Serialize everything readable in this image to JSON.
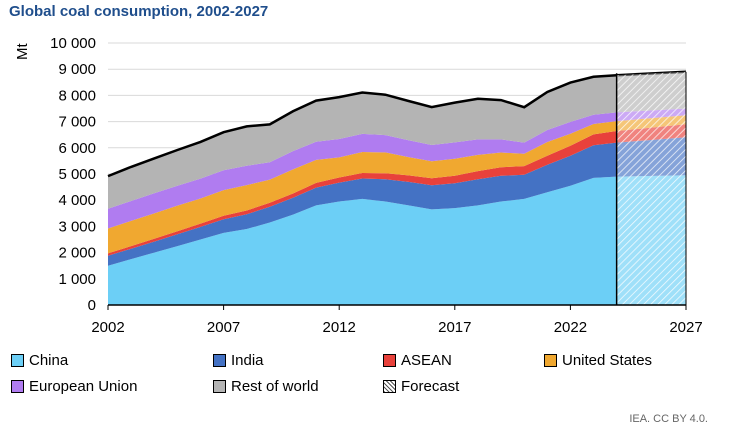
{
  "chart_data": {
    "type": "area",
    "stacked": true,
    "title": "Global coal consumption, 2002-2027",
    "ylabel": "Mt",
    "xlabel": "",
    "xlim": [
      2002,
      2027
    ],
    "ylim": [
      0,
      10000
    ],
    "xticks": [
      2002,
      2007,
      2012,
      2017,
      2022,
      2027
    ],
    "yticks": [
      0,
      1000,
      2000,
      3000,
      4000,
      5000,
      6000,
      7000,
      8000,
      9000,
      10000
    ],
    "ytick_labels": [
      "0",
      "1 000",
      "2 000",
      "3 000",
      "4 000",
      "5 000",
      "6 000",
      "7 000",
      "8 000",
      "9 000",
      "10 000"
    ],
    "forecast_start": 2024,
    "grid": "horizontal",
    "legend_position": "bottom",
    "x": [
      2002,
      2003,
      2004,
      2005,
      2006,
      2007,
      2008,
      2009,
      2010,
      2011,
      2012,
      2013,
      2014,
      2015,
      2016,
      2017,
      2018,
      2019,
      2020,
      2021,
      2022,
      2023,
      2024,
      2027
    ],
    "series": [
      {
        "name": "China",
        "color": "#6ccff6",
        "values": [
          1500,
          1750,
          2000,
          2250,
          2500,
          2750,
          2900,
          3150,
          3450,
          3800,
          3950,
          4050,
          3950,
          3800,
          3650,
          3700,
          3800,
          3950,
          4050,
          4300,
          4550,
          4850,
          4900,
          4950
        ]
      },
      {
        "name": "India",
        "color": "#4472c4",
        "values": [
          380,
          400,
          420,
          450,
          480,
          520,
          560,
          600,
          640,
          680,
          720,
          780,
          850,
          900,
          920,
          950,
          1000,
          980,
          920,
          1050,
          1150,
          1250,
          1300,
          1450
        ]
      },
      {
        "name": "ASEAN",
        "color": "#e8413b",
        "values": [
          90,
          100,
          105,
          115,
          125,
          135,
          145,
          155,
          165,
          180,
          195,
          210,
          225,
          245,
          265,
          285,
          310,
          330,
          330,
          350,
          380,
          410,
          440,
          500
        ]
      },
      {
        "name": "United States",
        "color": "#f0a830",
        "values": [
          950,
          960,
          970,
          980,
          960,
          980,
          970,
          880,
          920,
          880,
          770,
          800,
          800,
          700,
          650,
          650,
          620,
          560,
          470,
          520,
          460,
          400,
          380,
          340
        ]
      },
      {
        "name": "European Union",
        "color": "#b07cf0",
        "values": [
          750,
          760,
          770,
          760,
          760,
          760,
          740,
          660,
          700,
          690,
          700,
          690,
          660,
          640,
          620,
          620,
          590,
          500,
          430,
          460,
          450,
          350,
          330,
          260
        ]
      },
      {
        "name": "Rest of world",
        "color": "#b4b4b4",
        "values": [
          1250,
          1300,
          1330,
          1360,
          1400,
          1450,
          1500,
          1450,
          1520,
          1570,
          1600,
          1580,
          1540,
          1500,
          1450,
          1520,
          1550,
          1500,
          1350,
          1450,
          1500,
          1450,
          1420,
          1400
        ]
      }
    ],
    "legend": [
      {
        "name": "China",
        "color": "#6ccff6"
      },
      {
        "name": "India",
        "color": "#4472c4"
      },
      {
        "name": "ASEAN",
        "color": "#e8413b"
      },
      {
        "name": "United States",
        "color": "#f0a830"
      },
      {
        "name": "European Union",
        "color": "#b07cf0"
      },
      {
        "name": "Rest of world",
        "color": "#b4b4b4"
      },
      {
        "name": "Forecast",
        "color": "#ffffff",
        "pattern": "hatch"
      }
    ]
  },
  "source_note": "IEA. CC BY 4.0."
}
